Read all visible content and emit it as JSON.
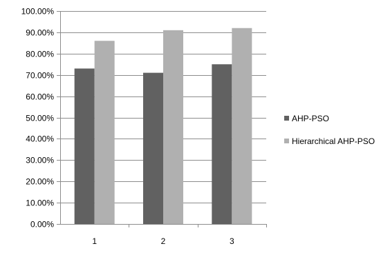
{
  "chart_data": {
    "type": "bar",
    "title": "",
    "xlabel": "",
    "ylabel": "",
    "categories": [
      "1",
      "2",
      "3"
    ],
    "series": [
      {
        "name": "AHP-PSO",
        "values": [
          0.73,
          0.71,
          0.75
        ],
        "color": "#616161"
      },
      {
        "name": "Hierarchical AHP-PSO",
        "values": [
          0.86,
          0.91,
          0.92
        ],
        "color": "#b0b0b0"
      }
    ],
    "ylim": [
      0,
      1
    ],
    "y_ticks": [
      0,
      0.1,
      0.2,
      0.3,
      0.4,
      0.5,
      0.6,
      0.7,
      0.8,
      0.9,
      1.0
    ],
    "y_tick_labels": [
      "0.00%",
      "10.00%",
      "20.00%",
      "30.00%",
      "40.00%",
      "50.00%",
      "60.00%",
      "70.00%",
      "80.00%",
      "90.00%",
      "100.00%"
    ],
    "grid": "horizontal",
    "legend_position": "right"
  }
}
